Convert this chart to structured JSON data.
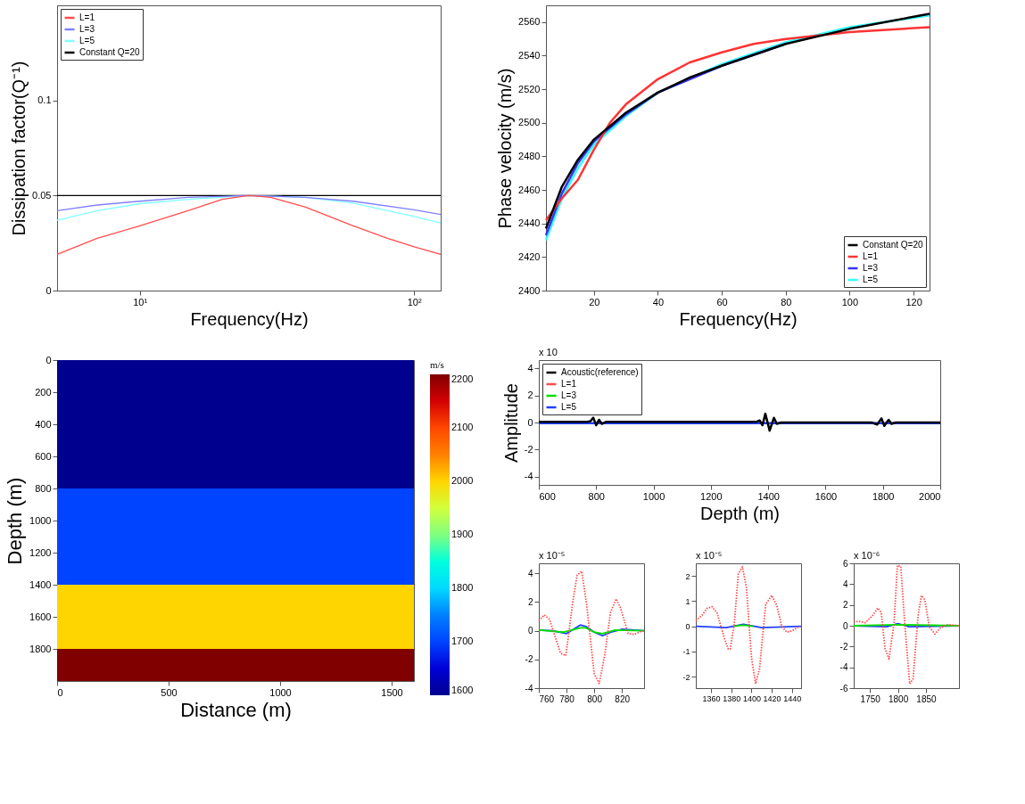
{
  "chart_data": [
    {
      "type": "line",
      "xlabel": "Frequency(Hz)",
      "ylabel": "Dissipation factor(Q⁻¹)",
      "log": "x",
      "xlim": [
        5,
        125
      ],
      "ylim": [
        0,
        0.15
      ],
      "xticks": [
        {
          "value": 10,
          "label": "10¹"
        },
        {
          "value": 100,
          "label": "10²"
        }
      ],
      "yticks": [
        0,
        0.05,
        0.1
      ],
      "legend": "top left",
      "line_style": "solid",
      "series": [
        {
          "name": "L=1",
          "color": "#ff4d4d",
          "x": [
            5,
            7,
            10,
            15,
            20,
            25,
            30,
            40,
            60,
            80,
            100,
            125
          ],
          "values": [
            0.019,
            0.0275,
            0.034,
            0.042,
            0.048,
            0.05,
            0.049,
            0.044,
            0.034,
            0.0275,
            0.023,
            0.019
          ]
        },
        {
          "name": "L=3",
          "color": "#8080ff",
          "x": [
            5,
            7,
            10,
            15,
            25,
            40,
            60,
            100,
            125
          ],
          "values": [
            0.042,
            0.045,
            0.047,
            0.049,
            0.05,
            0.049,
            0.047,
            0.0425,
            0.04
          ]
        },
        {
          "name": "L=5",
          "color": "#80ffff",
          "x": [
            5,
            7,
            10,
            15,
            25,
            40,
            60,
            100,
            125
          ],
          "values": [
            0.037,
            0.042,
            0.0457,
            0.048,
            0.05,
            0.049,
            0.046,
            0.039,
            0.0356
          ]
        },
        {
          "name": "Constant Q=20",
          "color": "#000000",
          "x": [
            5,
            125
          ],
          "values": [
            0.05,
            0.05
          ]
        }
      ]
    },
    {
      "type": "line",
      "xlabel": "Frequency(Hz)",
      "ylabel": "Phase velocity (m/s)",
      "xlim": [
        5,
        125
      ],
      "ylim": [
        2400,
        2570
      ],
      "xticks": [
        20,
        40,
        60,
        80,
        100,
        120
      ],
      "yticks": [
        2400,
        2420,
        2440,
        2460,
        2480,
        2500,
        2520,
        2540,
        2560
      ],
      "legend": "bottom right",
      "line_style": "solid",
      "series": [
        {
          "name": "Constant Q=20",
          "color": "#000000",
          "x": [
            5,
            10,
            15,
            20,
            30,
            40,
            50,
            60,
            80,
            100,
            125
          ],
          "values": [
            2437,
            2462,
            2478,
            2490,
            2506,
            2518,
            2527,
            2534,
            2547,
            2556,
            2565
          ]
        },
        {
          "name": "L=1",
          "color": "#ff3333",
          "x": [
            5,
            10,
            15,
            20,
            25,
            30,
            40,
            50,
            60,
            70,
            80,
            100,
            125
          ],
          "values": [
            2442,
            2455,
            2466,
            2484,
            2500,
            2511,
            2526,
            2536,
            2542,
            2547,
            2550,
            2554,
            2557
          ]
        },
        {
          "name": "L=3",
          "color": "#3333ff",
          "x": [
            5,
            10,
            15,
            20,
            30,
            40,
            60,
            80
          ],
          "values": [
            2433,
            2458,
            2476,
            2489,
            2505,
            2518,
            2534,
            2547
          ]
        },
        {
          "name": "L=5",
          "color": "#33ffff",
          "x": [
            5,
            10,
            15,
            20,
            30,
            40,
            60,
            80,
            100,
            125
          ],
          "values": [
            2430,
            2455,
            2473,
            2487,
            2504,
            2518,
            2535,
            2548,
            2557,
            2564
          ]
        }
      ]
    },
    {
      "type": "heatmap",
      "xlabel": "Distance (m)",
      "ylabel": "Depth (m)",
      "clabel": "m/s",
      "xlim": [
        0,
        1600
      ],
      "ylim": [
        2000,
        0
      ],
      "xticks": [
        0,
        500,
        1000,
        1500
      ],
      "yticks": [
        0,
        200,
        400,
        600,
        800,
        1000,
        1200,
        1400,
        1600,
        1800
      ],
      "clim": [
        1600,
        2200
      ],
      "cticks": [
        1600,
        1700,
        1800,
        1900,
        2000,
        2100,
        2200
      ],
      "cells": [
        [
          1600
        ],
        [
          1600
        ],
        [
          1600
        ],
        [
          1600
        ],
        [
          1700
        ],
        [
          1700
        ],
        [
          1700
        ],
        [
          2000
        ],
        [
          2000
        ],
        [
          2200
        ]
      ]
    },
    {
      "type": "line",
      "xlabel": "Depth (m)",
      "ylabel": "Amplitude",
      "xlim": [
        600,
        2000
      ],
      "ylim": [
        -4.6,
        4.6
      ],
      "xticks": [
        600,
        800,
        1000,
        1200,
        1400,
        1600,
        1800,
        2000
      ],
      "yticks": [
        -4,
        -2,
        0,
        2,
        4
      ],
      "legend": "top left",
      "line_style": "solid",
      "annotations": [
        "x 10"
      ],
      "series": [
        {
          "name": "Acoustic(reference)",
          "color": "#000000",
          "x": [
            600,
            770,
            780,
            790,
            800,
            810,
            820,
            835,
            1360,
            1370,
            1380,
            1390,
            1405,
            1420,
            1430,
            1445,
            1760,
            1780,
            1795,
            1805,
            1820,
            1830,
            1845,
            2000
          ],
          "values": [
            0.05,
            0.05,
            0.1,
            0.35,
            -0.2,
            0.2,
            -0.1,
            0.05,
            0.05,
            0.15,
            -0.2,
            0.65,
            -0.6,
            0.35,
            -0.1,
            0.0,
            0.0,
            -0.15,
            0.3,
            -0.25,
            0.2,
            -0.1,
            0.0,
            0.0
          ]
        },
        {
          "name": "L=1",
          "color": "#ff4d4d",
          "line_style": "dotted"
        },
        {
          "name": "L=3",
          "color": "#00e000"
        },
        {
          "name": "L=5",
          "color": "#2040ff",
          "x": [
            600,
            2000
          ],
          "values": [
            -0.05,
            -0.05
          ]
        }
      ]
    },
    {
      "type": "line",
      "xlim": [
        760,
        836
      ],
      "ylim": [
        -4,
        4.7
      ],
      "xticks": [
        760,
        780,
        800,
        820
      ],
      "yticks": [
        -4,
        -2,
        0,
        2,
        4
      ],
      "line_style": "solid",
      "annotations": [
        "x 10⁻⁵"
      ],
      "series": [
        {
          "color": "#ff4d4d",
          "line_style": "dotted",
          "x": [
            760,
            764,
            767.7,
            775.6,
            779.5,
            784.3,
            787.6,
            791,
            794.5,
            800,
            803.6,
            807.7,
            811.7,
            815.8,
            818.8,
            824.5,
            829,
            835
          ],
          "values": [
            0.7,
            1.1,
            0.8,
            -1.55,
            -1.74,
            1.84,
            3.86,
            4.15,
            1.84,
            -3.0,
            -3.67,
            -1.64,
            1.26,
            2.22,
            1.64,
            -0.19,
            -0.25,
            0
          ]
        },
        {
          "color": "#00e000",
          "x": [
            760,
            778,
            790,
            794,
            800,
            806,
            815,
            836
          ],
          "values": [
            0.05,
            -0.1,
            0.2,
            0.2,
            -0.1,
            -0.2,
            0.05,
            0
          ]
        },
        {
          "color": "#2040ff",
          "x": [
            760,
            770,
            780,
            790,
            794,
            800,
            806,
            812,
            820,
            836
          ],
          "values": [
            0.05,
            0,
            -0.2,
            0.4,
            0.3,
            -0.1,
            -0.35,
            -0.1,
            0.1,
            0
          ]
        }
      ]
    },
    {
      "type": "line",
      "xlim": [
        1345,
        1449
      ],
      "ylim": [
        -2.45,
        2.5
      ],
      "xticks": [
        1360,
        1380,
        1400,
        1420,
        1440
      ],
      "yticks": [
        -2,
        -1,
        0,
        1,
        2
      ],
      "line_style": "solid",
      "annotations": [
        "x 10⁻⁵"
      ],
      "series": [
        {
          "color": "#ff4d4d",
          "line_style": "dotted",
          "x": [
            1345,
            1351,
            1356,
            1361,
            1366,
            1373,
            1377,
            1379,
            1383,
            1387,
            1391,
            1395,
            1400,
            1404,
            1408,
            1414,
            1420,
            1425,
            1430,
            1435,
            1440,
            1448
          ],
          "values": [
            0.23,
            0.43,
            0.71,
            0.78,
            0.54,
            -0.45,
            -0.9,
            -0.9,
            0.1,
            2.09,
            2.36,
            1.54,
            -1.23,
            -2.28,
            -1.67,
            0.87,
            1.23,
            0.82,
            -0.01,
            -0.23,
            -0.18,
            0.01
          ]
        },
        {
          "color": "#00e000",
          "x": [
            1382,
            1392,
            1402
          ],
          "values": [
            0,
            0.05,
            0
          ]
        },
        {
          "color": "#2040ff",
          "x": [
            1345,
            1375,
            1392,
            1410,
            1449
          ],
          "values": [
            0,
            -0.05,
            0.08,
            -0.05,
            0
          ]
        }
      ]
    },
    {
      "type": "line",
      "xlim": [
        1721,
        1909
      ],
      "ylim": [
        -6,
        6
      ],
      "xticks": [
        1750,
        1800,
        1850
      ],
      "yticks": [
        -6,
        -4,
        -2,
        0,
        2,
        4,
        6
      ],
      "line_style": "solid",
      "annotations": [
        "x 10⁻⁶"
      ],
      "series": [
        {
          "color": "#ff4d4d",
          "line_style": "dotted",
          "x": [
            1721,
            1732,
            1742,
            1755,
            1764,
            1770,
            1777,
            1784,
            1793,
            1799,
            1805,
            1813,
            1821,
            1827,
            1836,
            1842,
            1848,
            1856,
            1866,
            1876,
            1889,
            1909
          ],
          "values": [
            0.4,
            0.4,
            0.3,
            1.0,
            1.7,
            1.3,
            -2.2,
            -3.2,
            0.2,
            5.8,
            5.7,
            -0.4,
            -5.6,
            -5.1,
            1.0,
            2.9,
            2.5,
            -0.1,
            -0.8,
            -0.2,
            0.1,
            0
          ]
        },
        {
          "color": "#00e000",
          "x": [
            1721,
            1800,
            1909
          ],
          "values": [
            0,
            0.1,
            0
          ]
        },
        {
          "color": "#2040ff",
          "x": [
            1721,
            1780,
            1800,
            1820,
            1909
          ],
          "values": [
            0,
            -0.1,
            0.2,
            -0.1,
            0
          ]
        }
      ]
    }
  ]
}
